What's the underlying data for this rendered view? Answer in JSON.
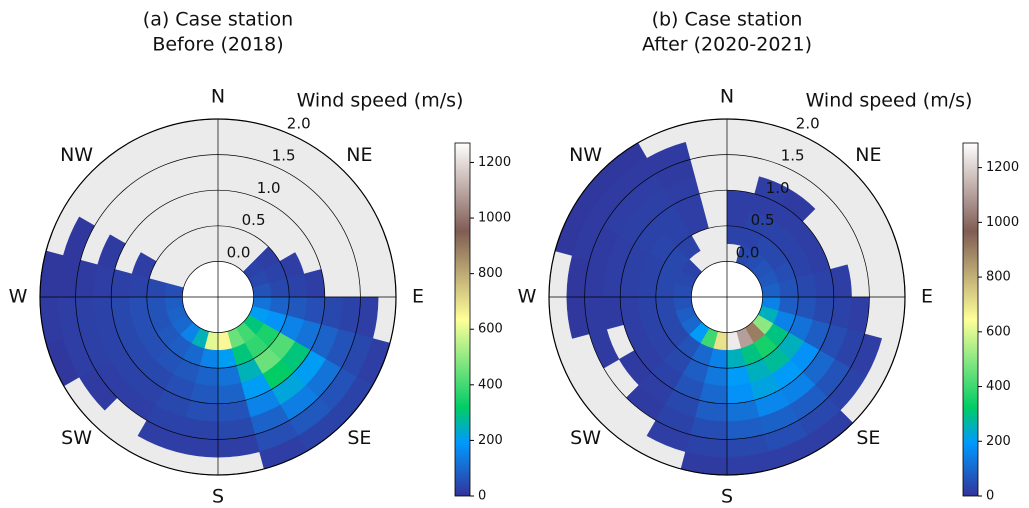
{
  "chart_data": [
    {
      "type": "polar-heatmap",
      "title": "(a) Case station",
      "subtitle": "Before (2018)",
      "r_label": "Wind speed (m/s)",
      "theta_zero": "N",
      "theta_direction": "clockwise",
      "theta_labels": [
        "N",
        "NE",
        "E",
        "SE",
        "S",
        "SW",
        "W",
        "NW"
      ],
      "theta_bins": [
        0,
        15,
        30,
        45,
        60,
        75,
        90,
        105,
        120,
        135,
        150,
        165,
        180,
        195,
        210,
        225,
        240,
        255,
        270,
        285,
        300,
        315,
        330,
        345,
        360
      ],
      "r_bins": [
        0,
        0.25,
        0.5,
        0.75,
        1,
        1.25,
        1.5,
        1.75,
        2
      ],
      "rlim": [
        -0.5,
        2.0
      ],
      "rticks": [
        {
          "value": 0,
          "label": "0.0"
        },
        0.5,
        {
          "value": 1,
          "label": "1.0"
        },
        1.5,
        {
          "value": 2,
          "label": "2.0"
        }
      ],
      "clim": [
        0,
        1270
      ],
      "cticks": [
        0,
        200,
        400,
        600,
        800,
        1000,
        1200
      ],
      "colormap": [
        {
          "stop": 0,
          "color": "#333399"
        },
        {
          "stop": 0.15,
          "color": "#0099ff"
        },
        {
          "stop": 0.25,
          "color": "#00cc66"
        },
        {
          "stop": 0.5,
          "color": "#ffff99"
        },
        {
          "stop": 0.75,
          "color": "#805c54"
        },
        {
          "stop": 1,
          "color": "#ffffff"
        }
      ],
      "values": [
        [
          null,
          null,
          null,
          null,
          null,
          null,
          null,
          null
        ],
        [
          null,
          null,
          null,
          null,
          null,
          null,
          null,
          null
        ],
        [
          null,
          null,
          null,
          null,
          null,
          null,
          null,
          null
        ],
        [
          30,
          20,
          null,
          null,
          null,
          null,
          null,
          null
        ],
        [
          40,
          30,
          20,
          null,
          null,
          null,
          null,
          null
        ],
        [
          60,
          40,
          30,
          20,
          null,
          null,
          null,
          null
        ],
        [
          120,
          90,
          70,
          50,
          40,
          30,
          20,
          null
        ],
        [
          200,
          180,
          150,
          120,
          90,
          60,
          40,
          20
        ],
        [
          300,
          350,
          420,
          300,
          200,
          120,
          60,
          30
        ],
        [
          400,
          380,
          450,
          320,
          220,
          140,
          70,
          30
        ],
        [
          450,
          300,
          250,
          200,
          150,
          90,
          50,
          20
        ],
        [
          650,
          200,
          120,
          90,
          60,
          40,
          20,
          null
        ],
        [
          600,
          150,
          90,
          70,
          50,
          30,
          20,
          null
        ],
        [
          250,
          100,
          70,
          50,
          40,
          30,
          20,
          null
        ],
        [
          150,
          80,
          60,
          40,
          30,
          20,
          null,
          null
        ],
        [
          100,
          70,
          50,
          40,
          30,
          20,
          15,
          null
        ],
        [
          90,
          60,
          50,
          40,
          30,
          25,
          20,
          10
        ],
        [
          80,
          60,
          50,
          40,
          30,
          25,
          20,
          15
        ],
        [
          50,
          40,
          30,
          25,
          20,
          15,
          10,
          10
        ],
        [
          null,
          null,
          20,
          null,
          15,
          null,
          10,
          null
        ],
        [
          null,
          null,
          null,
          null,
          null,
          null,
          null,
          null
        ],
        [
          null,
          null,
          null,
          null,
          null,
          null,
          null,
          null
        ],
        [
          null,
          null,
          null,
          null,
          null,
          null,
          null,
          null
        ],
        [
          null,
          null,
          null,
          null,
          null,
          null,
          null,
          null
        ]
      ]
    },
    {
      "type": "polar-heatmap",
      "title": "(b) Case station",
      "subtitle": "After (2020-2021)",
      "r_label": "Wind speed (m/s)",
      "theta_zero": "N",
      "theta_direction": "clockwise",
      "theta_labels": [
        "N",
        "NE",
        "E",
        "SE",
        "S",
        "SW",
        "W",
        "NW"
      ],
      "theta_bins": [
        0,
        15,
        30,
        45,
        60,
        75,
        90,
        105,
        120,
        135,
        150,
        165,
        180,
        195,
        210,
        225,
        240,
        255,
        270,
        285,
        300,
        315,
        330,
        345,
        360
      ],
      "r_bins": [
        0,
        0.25,
        0.5,
        0.75,
        1,
        1.25,
        1.5,
        1.75,
        2
      ],
      "rlim": [
        -0.5,
        2.0
      ],
      "rticks": [
        {
          "value": 0,
          "label": "0.0"
        },
        0.5,
        {
          "value": 1,
          "label": "1.0"
        },
        1.5,
        {
          "value": 2,
          "label": "2.0"
        }
      ],
      "clim": [
        0,
        1290
      ],
      "cticks": [
        0,
        200,
        400,
        600,
        800,
        1000,
        1200
      ],
      "colormap": [
        {
          "stop": 0,
          "color": "#333399"
        },
        {
          "stop": 0.15,
          "color": "#0099ff"
        },
        {
          "stop": 0.25,
          "color": "#00cc66"
        },
        {
          "stop": 0.5,
          "color": "#ffff99"
        },
        {
          "stop": 0.75,
          "color": "#805c54"
        },
        {
          "stop": 1,
          "color": "#ffffff"
        }
      ],
      "values": [
        [
          null,
          30,
          20,
          20,
          null,
          null,
          null,
          null
        ],
        [
          40,
          30,
          30,
          20,
          20,
          null,
          null,
          null
        ],
        [
          50,
          40,
          30,
          20,
          15,
          null,
          null,
          null
        ],
        [
          60,
          40,
          30,
          20,
          null,
          null,
          null,
          null
        ],
        [
          70,
          50,
          30,
          20,
          null,
          null,
          null,
          null
        ],
        [
          90,
          60,
          40,
          30,
          20,
          null,
          null,
          null
        ],
        [
          150,
          80,
          60,
          40,
          30,
          20,
          null,
          null
        ],
        [
          250,
          150,
          120,
          80,
          50,
          30,
          20,
          null
        ],
        [
          500,
          300,
          250,
          180,
          100,
          60,
          30,
          null
        ],
        [
          900,
          350,
          280,
          200,
          150,
          80,
          40,
          20
        ],
        [
          1100,
          300,
          250,
          220,
          160,
          90,
          50,
          20
        ],
        [
          1250,
          250,
          200,
          180,
          120,
          80,
          40,
          20
        ],
        [
          700,
          150,
          130,
          100,
          80,
          50,
          30,
          15
        ],
        [
          400,
          100,
          80,
          60,
          40,
          30,
          20,
          null
        ],
        [
          200,
          60,
          40,
          30,
          20,
          15,
          null,
          null
        ],
        [
          100,
          40,
          30,
          20,
          15,
          null,
          null,
          null
        ],
        [
          80,
          40,
          30,
          20,
          null,
          15,
          null,
          null
        ],
        [
          60,
          40,
          30,
          20,
          15,
          15,
          10,
          null
        ],
        [
          50,
          40,
          30,
          25,
          20,
          15,
          10,
          null
        ],
        [
          40,
          40,
          30,
          25,
          20,
          15,
          15,
          10
        ],
        [
          30,
          40,
          35,
          30,
          25,
          20,
          15,
          10
        ],
        [
          null,
          30,
          30,
          30,
          25,
          20,
          15,
          10
        ],
        [
          null,
          null,
          20,
          20,
          20,
          15,
          15,
          null
        ],
        [
          null,
          null,
          null,
          null,
          null,
          null,
          null,
          null
        ]
      ]
    }
  ]
}
